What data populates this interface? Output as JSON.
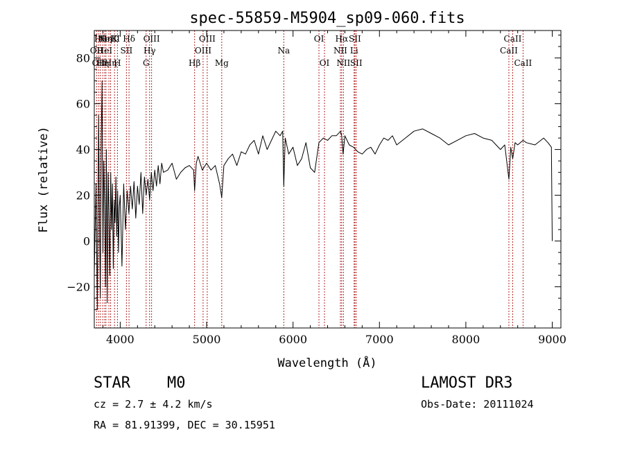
{
  "chart_data": {
    "type": "line",
    "title": "spec-55859-M5904_sp09-060.fits",
    "xlabel": "Wavelength (Å)",
    "ylabel": "Flux (relative)",
    "xlim": [
      3700,
      9100
    ],
    "ylim": [
      -38,
      92
    ],
    "xticks": [
      4000,
      5000,
      6000,
      7000,
      8000,
      9000
    ],
    "xtick_labels": [
      "4000",
      "5000",
      "6000",
      "7000",
      "8000",
      "9000"
    ],
    "yticks": [
      -20,
      0,
      20,
      40,
      60,
      80
    ],
    "ytick_labels": [
      "−20",
      "0",
      "20",
      "40",
      "60",
      "80"
    ],
    "series": [
      {
        "name": "flux",
        "color": "#000000",
        "x": [
          3700,
          3720,
          3735,
          3750,
          3760,
          3770,
          3780,
          3790,
          3800,
          3810,
          3820,
          3830,
          3840,
          3850,
          3860,
          3870,
          3880,
          3890,
          3900,
          3910,
          3920,
          3930,
          3940,
          3950,
          3960,
          3970,
          3980,
          3990,
          4000,
          4020,
          4040,
          4060,
          4080,
          4100,
          4120,
          4140,
          4160,
          4180,
          4200,
          4220,
          4240,
          4260,
          4280,
          4300,
          4320,
          4340,
          4360,
          4380,
          4400,
          4420,
          4440,
          4460,
          4480,
          4500,
          4550,
          4600,
          4650,
          4700,
          4750,
          4800,
          4850,
          4861,
          4880,
          4900,
          4950,
          5000,
          5050,
          5100,
          5150,
          5175,
          5200,
          5250,
          5300,
          5350,
          5400,
          5450,
          5500,
          5550,
          5600,
          5650,
          5700,
          5750,
          5800,
          5850,
          5880,
          5893,
          5910,
          5950,
          6000,
          6050,
          6100,
          6150,
          6200,
          6250,
          6300,
          6350,
          6400,
          6450,
          6500,
          6550,
          6563,
          6580,
          6600,
          6650,
          6700,
          6750,
          6800,
          6850,
          6900,
          6950,
          7000,
          7050,
          7100,
          7150,
          7200,
          7300,
          7400,
          7500,
          7600,
          7700,
          7800,
          7900,
          8000,
          8100,
          8200,
          8300,
          8400,
          8450,
          8498,
          8520,
          8542,
          8570,
          8600,
          8662,
          8700,
          8800,
          8900,
          8950,
          8990,
          9000
        ],
        "y": [
          -15,
          25,
          -30,
          55,
          10,
          -25,
          45,
          70,
          -5,
          35,
          15,
          -20,
          40,
          -27,
          30,
          10,
          -15,
          30,
          5,
          25,
          -12,
          18,
          8,
          28,
          2,
          22,
          -5,
          15,
          20,
          -11,
          25,
          5,
          22,
          12,
          24,
          14,
          26,
          10,
          24,
          16,
          30,
          12,
          28,
          20,
          27,
          18,
          30,
          22,
          31,
          24,
          33,
          25,
          34,
          30,
          31,
          34,
          27,
          30,
          32,
          33,
          31,
          22,
          34,
          37,
          31,
          34,
          31,
          33,
          25,
          19,
          33,
          36,
          38,
          33,
          39,
          38,
          42,
          44,
          38,
          46,
          40,
          44,
          48,
          46,
          48,
          24,
          45,
          38,
          41,
          33,
          36,
          43,
          32,
          30,
          43,
          45,
          44,
          46,
          46,
          48,
          46,
          38,
          46,
          42,
          41,
          39,
          38,
          40,
          41,
          38,
          42,
          45,
          44,
          46,
          42,
          45,
          48,
          49,
          47,
          45,
          42,
          44,
          46,
          47,
          45,
          44,
          40,
          42,
          27,
          41,
          36,
          43,
          42,
          44,
          43,
          42,
          45,
          43,
          41,
          0
        ]
      }
    ],
    "lines": [
      {
        "wavelength": 3727,
        "label": "OII",
        "row": 2
      },
      {
        "wavelength": 3750,
        "label": "OII",
        "row": 3
      },
      {
        "wavelength": 3770,
        "label": "Hθ",
        "row": 1
      },
      {
        "wavelength": 3798,
        "label": "Hη",
        "row": 3
      },
      {
        "wavelength": 3820,
        "label": "HeI",
        "row": 2
      },
      {
        "wavelength": 3835,
        "label": "Hη",
        "row": 1
      },
      {
        "wavelength": 3869,
        "label": "NeIII",
        "row": 1
      },
      {
        "wavelength": 3889,
        "label": "Hη",
        "row": 3
      },
      {
        "wavelength": 3934,
        "label": "K",
        "row": 1
      },
      {
        "wavelength": 3968,
        "label": "H",
        "row": 3
      },
      {
        "wavelength": 4072,
        "label": "SII",
        "row": 2
      },
      {
        "wavelength": 4102,
        "label": "Hδ",
        "row": 1
      },
      {
        "wavelength": 4300,
        "label": "G",
        "row": 3
      },
      {
        "wavelength": 4340,
        "label": "Hγ",
        "row": 2
      },
      {
        "wavelength": 4363,
        "label": "OIII",
        "row": 1
      },
      {
        "wavelength": 4861,
        "label": "Hβ",
        "row": 3
      },
      {
        "wavelength": 4959,
        "label": "OIII",
        "row": 2
      },
      {
        "wavelength": 5007,
        "label": "OIII",
        "row": 1
      },
      {
        "wavelength": 5175,
        "label": "Mg",
        "row": 3
      },
      {
        "wavelength": 5893,
        "label": "Na",
        "row": 2
      },
      {
        "wavelength": 6300,
        "label": "OI",
        "row": 1
      },
      {
        "wavelength": 6364,
        "label": "OI",
        "row": 3
      },
      {
        "wavelength": 6548,
        "label": "NII",
        "row": 2
      },
      {
        "wavelength": 6563,
        "label": "Hα",
        "row": 1
      },
      {
        "wavelength": 6583,
        "label": "NII",
        "row": 3
      },
      {
        "wavelength": 6707,
        "label": "Li",
        "row": 2
      },
      {
        "wavelength": 6716,
        "label": "SII",
        "row": 1
      },
      {
        "wavelength": 6731,
        "label": "SII",
        "row": 3
      },
      {
        "wavelength": 8498,
        "label": "CaII",
        "row": 2
      },
      {
        "wavelength": 8542,
        "label": "CaII",
        "row": 1
      },
      {
        "wavelength": 8662,
        "label": "CaII",
        "row": 3
      }
    ]
  },
  "info": {
    "class": "STAR",
    "subclass": "M0",
    "survey": "LAMOST DR3",
    "cz": "cz = 2.7 ± 4.2 km/s",
    "obs_date": "Obs-Date: 20111024",
    "coords": "RA =  81.91399, DEC =  30.15951"
  },
  "colors": {
    "spectrum": "#000000",
    "line_marker": "#b22222",
    "axes": "#000000",
    "background": "#ffffff"
  }
}
